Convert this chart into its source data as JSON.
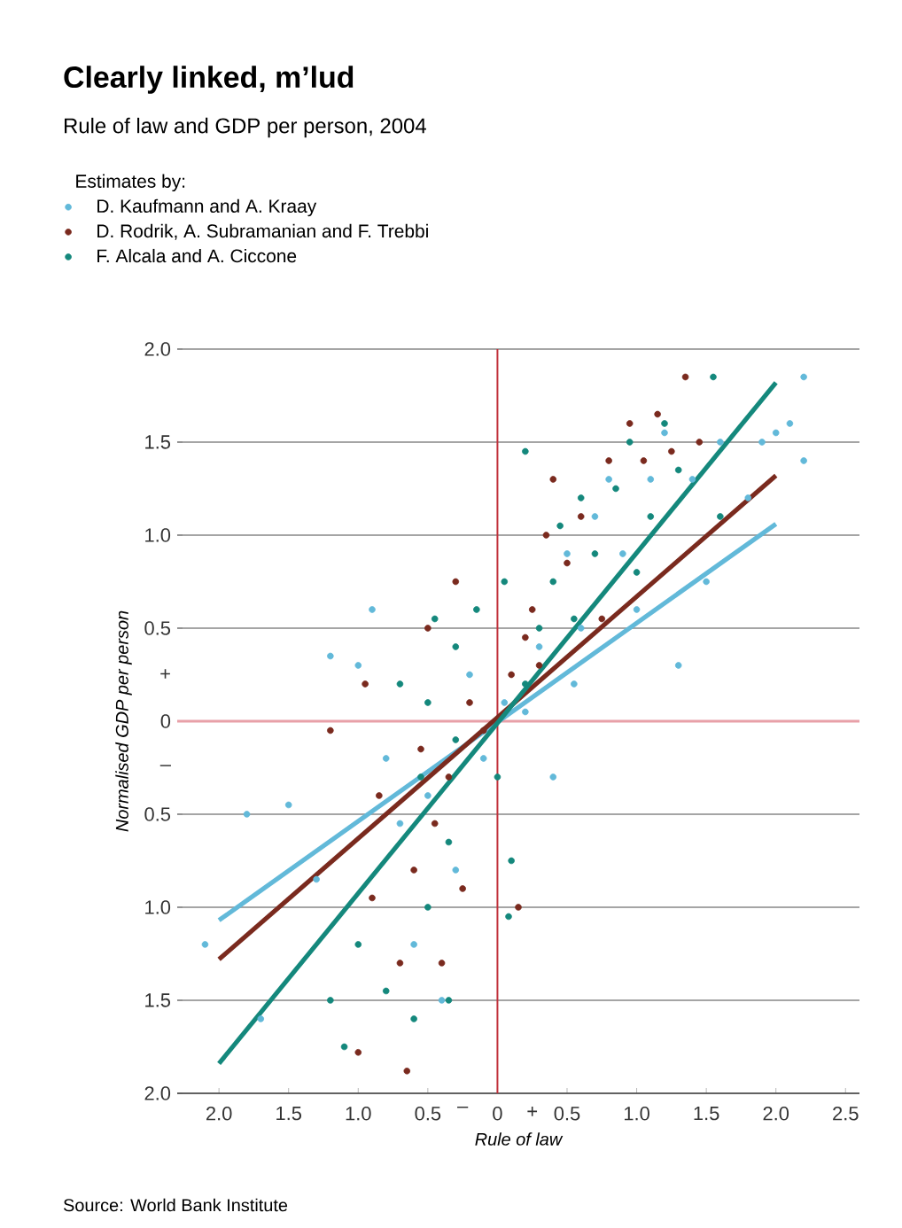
{
  "chart_data": {
    "type": "scatter",
    "title": "Clearly linked, m’lud",
    "subtitle": "Rule of law and GDP per person, 2004",
    "legend_title": "Estimates by:",
    "xlabel": "Rule of law",
    "ylabel": "Normalised GDP per person",
    "annotations": [
      "Source: World Bank Institute"
    ],
    "xlim": [
      -2.3,
      2.6
    ],
    "ylim": [
      -2,
      2
    ],
    "xticks": [
      {
        "value": -2,
        "label": "2.0"
      },
      {
        "value": -1.5,
        "label": "1.5"
      },
      {
        "value": -1,
        "label": "1.0"
      },
      {
        "value": -0.5,
        "label": "0.5"
      },
      {
        "value": -0.25,
        "label": "–"
      },
      0,
      {
        "value": 0.25,
        "label": "+"
      },
      0.5,
      {
        "value": 1,
        "label": "1.0"
      },
      1.5,
      {
        "value": 2,
        "label": "2.0"
      },
      2.5
    ],
    "yticks": [
      {
        "value": -2,
        "label": "2.0"
      },
      {
        "value": -1.5,
        "label": "1.5"
      },
      {
        "value": -1,
        "label": "1.0"
      },
      {
        "value": -0.5,
        "label": "0.5"
      },
      {
        "value": -0.25,
        "label": "–"
      },
      0,
      {
        "value": 0.25,
        "label": "+"
      },
      0.5,
      {
        "value": 1,
        "label": "1.0"
      },
      1.5,
      {
        "value": 2,
        "label": "2.0"
      }
    ],
    "grid": "y",
    "legend": "top left",
    "marker": "circle",
    "ref_lines": [
      {
        "axis": "x",
        "value": 0,
        "color": "#c0303a"
      },
      {
        "axis": "y",
        "value": 0,
        "color": "#e8a0a8"
      }
    ],
    "series": [
      {
        "name": "D. Kaufmann and A. Kraay",
        "color": "#62b9d9",
        "x": [
          -2.1,
          -1.8,
          -1.7,
          -1.5,
          -1.3,
          -1.2,
          -1.0,
          -0.9,
          -0.8,
          -0.7,
          -0.6,
          -0.5,
          -0.4,
          -0.3,
          -0.2,
          -0.1,
          0.05,
          0.2,
          0.3,
          0.4,
          0.5,
          0.6,
          0.7,
          0.8,
          0.9,
          1.0,
          1.1,
          1.2,
          1.4,
          1.5,
          1.6,
          1.8,
          1.9,
          2.0,
          2.1,
          2.2,
          2.2,
          1.3,
          0.55
        ],
        "values": [
          -1.2,
          -0.5,
          -1.6,
          -0.45,
          -0.85,
          0.35,
          0.3,
          0.6,
          -0.2,
          -0.55,
          -1.2,
          -0.4,
          -1.5,
          -0.8,
          0.25,
          -0.2,
          0.1,
          0.05,
          0.4,
          -0.3,
          0.9,
          0.5,
          1.1,
          1.3,
          0.9,
          0.6,
          1.3,
          1.55,
          1.3,
          0.75,
          1.5,
          1.2,
          1.5,
          1.55,
          1.6,
          1.85,
          1.4,
          0.3,
          0.2
        ]
      },
      {
        "name": "D. Rodrik, A. Subramanian and F. Trebbi",
        "color": "#7a2a1e",
        "x": [
          -1.0,
          -0.65,
          -0.9,
          -0.85,
          -0.6,
          -0.55,
          -0.45,
          -0.4,
          -0.7,
          -0.35,
          -0.5,
          -0.3,
          -0.2,
          -0.1,
          -0.25,
          0.1,
          0.2,
          0.25,
          0.3,
          0.35,
          0.4,
          0.5,
          0.6,
          0.75,
          0.8,
          0.95,
          1.05,
          1.15,
          1.35,
          1.45,
          1.25,
          -1.2,
          -0.95,
          0.15
        ],
        "values": [
          -1.78,
          -1.88,
          -0.95,
          -0.4,
          -0.8,
          -0.15,
          -0.55,
          -1.3,
          -1.3,
          -0.3,
          0.5,
          0.75,
          0.1,
          -0.05,
          -0.9,
          0.25,
          0.45,
          0.6,
          0.3,
          1.0,
          1.3,
          0.85,
          1.1,
          0.55,
          1.4,
          1.6,
          1.4,
          1.65,
          1.85,
          1.5,
          1.45,
          -0.05,
          0.2,
          -1.0
        ]
      },
      {
        "name": "F. Alcala and A. Ciccone",
        "color": "#14887c",
        "x": [
          -1.2,
          -1.1,
          -0.8,
          -0.6,
          -0.35,
          -0.5,
          -0.35,
          -0.3,
          -0.55,
          -0.7,
          -0.5,
          -0.45,
          -0.3,
          -0.15,
          0.05,
          0.0,
          0.1,
          0.08,
          0.2,
          0.3,
          0.4,
          0.45,
          0.55,
          0.6,
          0.7,
          0.85,
          0.95,
          1.1,
          1.2,
          1.3,
          1.55,
          1.6,
          1.0,
          0.2,
          -1.0
        ],
        "values": [
          -1.5,
          -1.75,
          -1.45,
          -1.6,
          -1.5,
          -1.0,
          -0.65,
          -0.1,
          -0.3,
          0.2,
          0.1,
          0.55,
          0.4,
          0.6,
          0.75,
          -0.3,
          -0.75,
          -1.05,
          0.2,
          0.5,
          0.75,
          1.05,
          0.55,
          1.2,
          0.9,
          1.25,
          1.5,
          1.1,
          1.6,
          1.35,
          1.85,
          1.1,
          0.8,
          1.45,
          -1.2
        ]
      },
      {
        "type": "line",
        "marker": "none",
        "color": "#62b9d9",
        "x": [
          -2.0,
          2.0
        ],
        "values": [
          -1.07,
          1.06
        ]
      },
      {
        "type": "line",
        "marker": "none",
        "color": "#7a2a1e",
        "x": [
          -2.0,
          2.0
        ],
        "values": [
          -1.28,
          1.32
        ]
      },
      {
        "type": "line",
        "marker": "none",
        "color": "#14887c",
        "x": [
          -2.0,
          2.0
        ],
        "values": [
          -1.84,
          1.82
        ]
      }
    ]
  }
}
